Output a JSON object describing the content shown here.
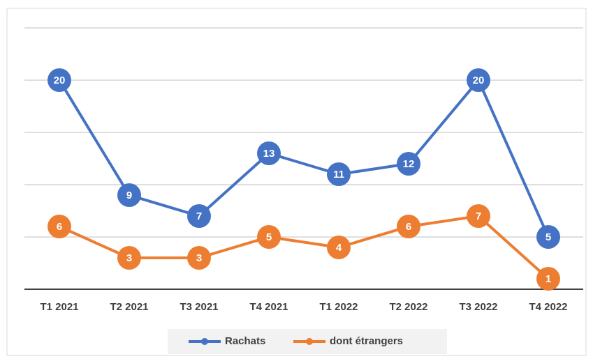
{
  "chart_data": {
    "type": "line",
    "categories": [
      "T1 2021",
      "T2 2021",
      "T3 2021",
      "T4 2021",
      "T1 2022",
      "T2 2022",
      "T3 2022",
      "T4 2022"
    ],
    "series": [
      {
        "name": "Rachats",
        "color": "#4472c4",
        "values": [
          20,
          9,
          7,
          13,
          11,
          12,
          20,
          5
        ]
      },
      {
        "name": "dont étrangers",
        "color": "#ed7d31",
        "values": [
          6,
          3,
          3,
          5,
          4,
          6,
          7,
          1
        ]
      }
    ],
    "ylim": [
      0,
      25
    ],
    "yticks": [
      0,
      5,
      10,
      15,
      20,
      25
    ],
    "grid": true,
    "legend": "bottom"
  }
}
